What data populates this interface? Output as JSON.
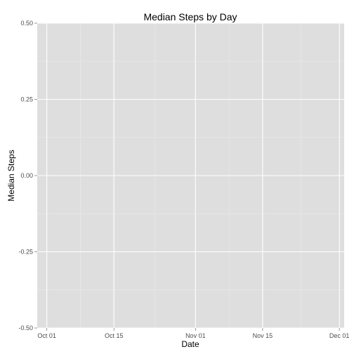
{
  "chart_data": {
    "type": "line",
    "title": "Median Steps by Day",
    "xlabel": "Date",
    "ylabel": "Median Steps",
    "x_range": [
      "2012-09-29",
      "2012-12-02"
    ],
    "x_ticks": [
      {
        "date": "2012-10-01",
        "label": "Oct 01"
      },
      {
        "date": "2012-10-15",
        "label": "Oct 15"
      },
      {
        "date": "2012-11-01",
        "label": "Nov 01"
      },
      {
        "date": "2012-11-15",
        "label": "Nov 15"
      },
      {
        "date": "2012-12-01",
        "label": "Dec 01"
      }
    ],
    "ylim": [
      -0.5,
      0.5
    ],
    "y_ticks": [
      {
        "value": 0.5,
        "label": "0.50"
      },
      {
        "value": 0.25,
        "label": "0.25"
      },
      {
        "value": 0.0,
        "label": "0.00"
      },
      {
        "value": -0.25,
        "label": "-0.25"
      },
      {
        "value": -0.5,
        "label": "-0.50"
      }
    ],
    "series": [
      {
        "name": "Median Steps",
        "values": []
      }
    ],
    "grid": true,
    "colors": {
      "panel_bg": "#dedede",
      "grid_major": "#ffffff",
      "grid_minor": "#e8e8e8",
      "tick_text": "#4d4d4d",
      "tick_mark": "#7f7f7f"
    }
  }
}
